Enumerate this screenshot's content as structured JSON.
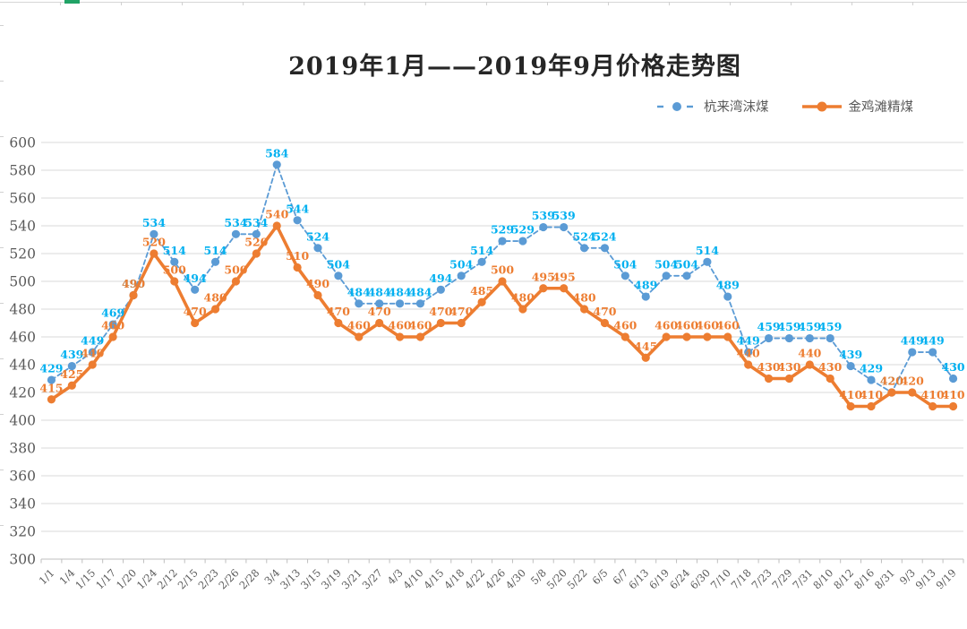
{
  "title": "2019年1月——2019年9月价格走势图",
  "colors": {
    "grid": "#D9D9D9",
    "axis": "#BFBFBF",
    "tick_text": "#595959",
    "title_text": "#262626",
    "legend_text": "#595959",
    "selection_green": "#21A366",
    "series1_line": "#5B9BD5",
    "series1_label": "#00B0F0",
    "series2_line": "#ED7D31",
    "series2_label": "#ED7D31"
  },
  "chart_data": {
    "type": "line",
    "title": "2019年1月——2019年9月价格走势图",
    "xlabel": "",
    "ylabel": "",
    "ylim": [
      300,
      600
    ],
    "yticks": [
      300,
      320,
      340,
      360,
      380,
      400,
      420,
      440,
      460,
      480,
      500,
      520,
      540,
      560,
      580,
      600
    ],
    "grid": true,
    "legend_position": "top-right",
    "data_labels": true,
    "categories": [
      "1/1",
      "1/4",
      "1/15",
      "1/17",
      "1/20",
      "1/24",
      "2/12",
      "2/15",
      "2/23",
      "2/26",
      "2/28",
      "3/4",
      "3/13",
      "3/15",
      "3/19",
      "3/21",
      "3/27",
      "4/3",
      "4/10",
      "4/15",
      "4/18",
      "4/22",
      "4/26",
      "4/30",
      "5/8",
      "5/20",
      "5/22",
      "6/5",
      "6/7",
      "6/13",
      "6/19",
      "6/24",
      "6/30",
      "7/10",
      "7/18",
      "7/23",
      "7/29",
      "7/31",
      "8/10",
      "8/12",
      "8/16",
      "8/31",
      "9/3",
      "9/13",
      "9/19"
    ],
    "series": [
      {
        "name": "杭来湾沫煤",
        "style": "dashed",
        "line_color": "#5B9BD5",
        "label_color": "#00B0F0",
        "values": [
          429,
          439,
          449,
          469,
          490,
          534,
          514,
          494,
          514,
          534,
          534,
          584,
          544,
          524,
          504,
          484,
          484,
          484,
          484,
          494,
          504,
          514,
          529,
          529,
          539,
          539,
          524,
          524,
          504,
          489,
          504,
          504,
          514,
          489,
          449,
          459,
          459,
          459,
          459,
          439,
          429,
          420,
          449,
          449,
          430
        ]
      },
      {
        "name": "金鸡滩精煤",
        "style": "solid",
        "line_color": "#ED7D31",
        "label_color": "#ED7D31",
        "values": [
          415,
          425,
          440,
          460,
          490,
          520,
          500,
          470,
          480,
          500,
          520,
          540,
          510,
          490,
          470,
          460,
          470,
          460,
          460,
          470,
          470,
          485,
          500,
          480,
          495,
          495,
          480,
          470,
          460,
          445,
          460,
          460,
          460,
          460,
          440,
          430,
          430,
          440,
          430,
          410,
          410,
          420,
          420,
          410,
          410
        ]
      }
    ]
  }
}
